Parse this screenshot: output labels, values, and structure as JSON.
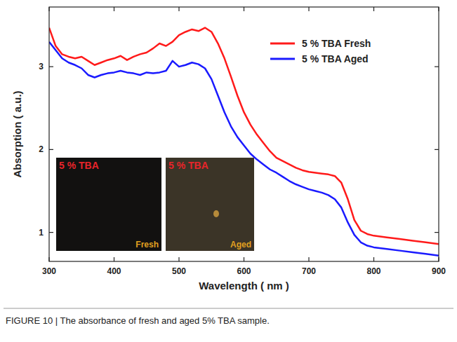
{
  "chart_data": {
    "type": "line",
    "x_label": "Wavelength ( nm )",
    "y_label": "Absorption ( a.u.)",
    "caption": "FIGURE 10 | The absorbance of fresh and aged 5% TBA sample.",
    "x": [
      300,
      310,
      320,
      330,
      340,
      350,
      360,
      370,
      380,
      390,
      400,
      410,
      420,
      430,
      440,
      450,
      460,
      470,
      480,
      490,
      500,
      510,
      520,
      530,
      540,
      550,
      560,
      570,
      580,
      590,
      600,
      610,
      620,
      630,
      640,
      650,
      660,
      670,
      680,
      690,
      700,
      710,
      720,
      730,
      740,
      750,
      760,
      770,
      780,
      790,
      800,
      820,
      840,
      860,
      880,
      900
    ],
    "series": [
      {
        "name": "5 % TBA Fresh",
        "color": "#ff1a1a",
        "values": [
          3.47,
          3.25,
          3.15,
          3.12,
          3.1,
          3.12,
          3.07,
          3.02,
          3.05,
          3.08,
          3.1,
          3.13,
          3.08,
          3.12,
          3.15,
          3.17,
          3.22,
          3.28,
          3.25,
          3.3,
          3.38,
          3.42,
          3.45,
          3.43,
          3.47,
          3.42,
          3.28,
          3.1,
          2.88,
          2.65,
          2.45,
          2.3,
          2.18,
          2.08,
          1.98,
          1.9,
          1.86,
          1.82,
          1.78,
          1.75,
          1.73,
          1.72,
          1.71,
          1.7,
          1.68,
          1.6,
          1.4,
          1.15,
          1.02,
          0.98,
          0.96,
          0.94,
          0.92,
          0.9,
          0.88,
          0.86
        ]
      },
      {
        "name": "5 % TBA Aged",
        "color": "#1a1aff",
        "values": [
          3.3,
          3.2,
          3.1,
          3.05,
          3.02,
          2.98,
          2.9,
          2.87,
          2.9,
          2.92,
          2.93,
          2.95,
          2.93,
          2.92,
          2.9,
          2.93,
          2.92,
          2.93,
          2.95,
          3.07,
          3.0,
          3.02,
          3.05,
          3.03,
          2.98,
          2.85,
          2.65,
          2.45,
          2.28,
          2.15,
          2.05,
          1.95,
          1.88,
          1.82,
          1.76,
          1.72,
          1.67,
          1.62,
          1.58,
          1.55,
          1.52,
          1.5,
          1.48,
          1.45,
          1.4,
          1.3,
          1.12,
          0.97,
          0.88,
          0.84,
          0.82,
          0.8,
          0.78,
          0.76,
          0.74,
          0.72
        ]
      }
    ],
    "xlim": [
      300,
      900
    ],
    "xticks": [
      300,
      400,
      500,
      600,
      700,
      800,
      900
    ],
    "ylim": [
      0.65,
      3.72
    ],
    "yticks": [
      1,
      2,
      3
    ],
    "legend": "upper right",
    "grid": false,
    "insets": [
      {
        "label": "5 % TBA",
        "tag": "Fresh"
      },
      {
        "label": "5 % TBA",
        "tag": "Aged"
      }
    ]
  }
}
